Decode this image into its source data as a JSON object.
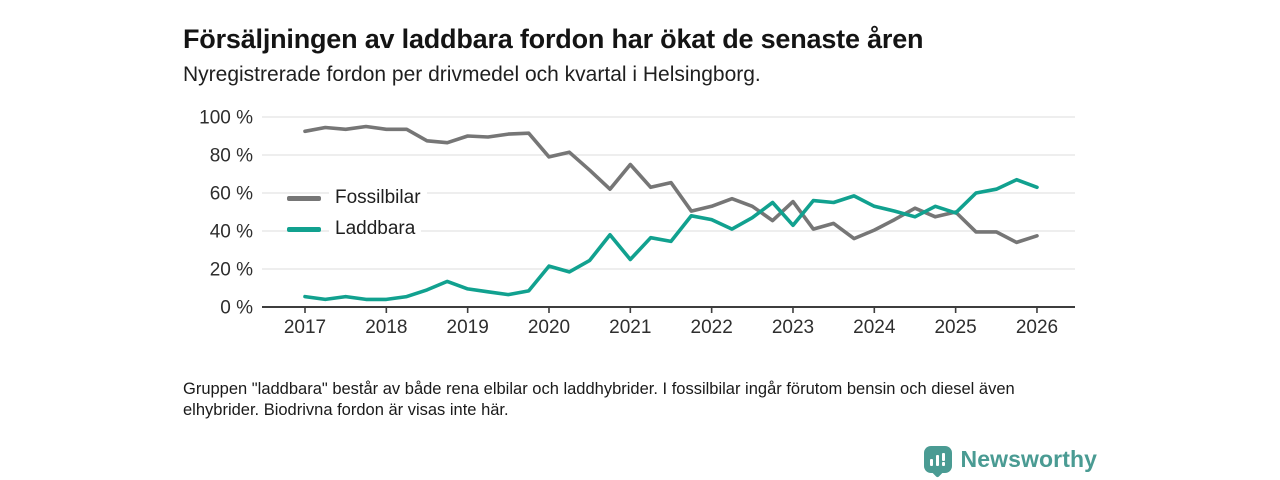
{
  "header": {
    "title": "Försäljningen av laddbara fordon har ökat de senaste åren",
    "subtitle": "Nyregistrerade fordon per drivmedel och kvartal i Helsingborg."
  },
  "chart_data": {
    "type": "line",
    "frequency": "quarterly",
    "x_start": "2017-Q1",
    "x_end": "2026-Q1",
    "x_tick_labels": [
      "2017",
      "2018",
      "2019",
      "2020",
      "2021",
      "2022",
      "2023",
      "2024",
      "2025",
      "2026"
    ],
    "y_ticks": [
      0,
      20,
      40,
      60,
      80,
      100
    ],
    "y_tick_labels": [
      "0 %",
      "20 %",
      "40 %",
      "60 %",
      "80 %",
      "100 %"
    ],
    "ylim": [
      0,
      100
    ],
    "unit": "%",
    "grid": "horizontal",
    "legend_position": "inside-top-left",
    "series": [
      {
        "name": "Fossilbilar",
        "color": "#767676",
        "values": [
          92.5,
          94.5,
          93.5,
          95,
          93.5,
          93.5,
          87.5,
          86.5,
          90,
          89.5,
          91,
          91.5,
          79,
          81.5,
          72,
          62,
          75,
          63,
          65.5,
          50.5,
          53,
          57,
          53,
          45.5,
          55.5,
          41,
          44,
          36,
          40.5,
          46,
          52,
          47.5,
          50,
          39.5,
          39.5,
          34,
          37.5
        ]
      },
      {
        "name": "Laddbara",
        "color": "#11a18f",
        "values": [
          5.5,
          4,
          5.5,
          4,
          4,
          5.5,
          9,
          13.5,
          9.5,
          8,
          6.5,
          8.5,
          21.5,
          18.5,
          24.5,
          38,
          25,
          36.5,
          34.5,
          48,
          46,
          41,
          47,
          55,
          43,
          56,
          55,
          58.5,
          53,
          50.5,
          47.5,
          53,
          49.5,
          60,
          62,
          67,
          63
        ]
      }
    ]
  },
  "legend": {
    "items": [
      {
        "label": "Fossilbilar",
        "color": "#767676"
      },
      {
        "label": "Laddbara",
        "color": "#11a18f"
      }
    ]
  },
  "footnote": {
    "text": "Gruppen \"laddbara\" består av både rena elbilar och laddhybrider. I fossilbilar ingår förutom bensin och diesel även elhybrider. Biodrivna fordon är visas inte här."
  },
  "logo": {
    "text": "Newsworthy",
    "color": "#4a9b93",
    "icon": "bar-chart-badge-icon"
  }
}
